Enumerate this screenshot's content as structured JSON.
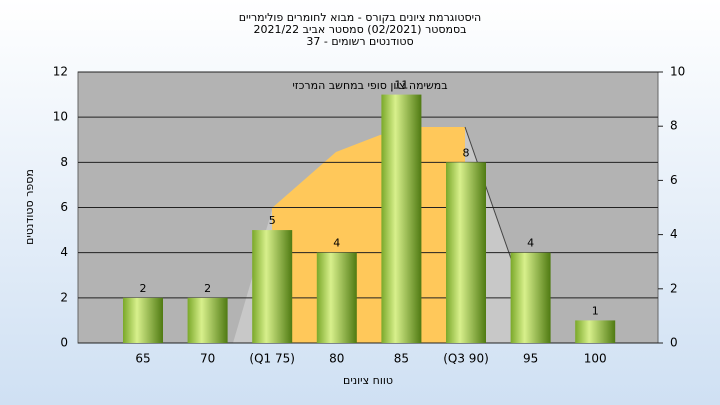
{
  "chart_data": {
    "type": "bar",
    "title": [
      "היסטוגרמת ציונים בקורס - מבוא לחומרים פולימריים",
      "בסמסטר  (02/2021)  סמסטר אביב 2021/22",
      "סטודנטים רשומים - 37"
    ],
    "annotation": "במשימה ציון סופי במחשב המרכזי",
    "x_label": "טווח ציונים",
    "y_label": "מספר סטודנטים",
    "categories": [
      "65",
      "70",
      "(Q1 75)",
      "80",
      "85",
      "(Q3 90)",
      "95",
      "100"
    ],
    "values": [
      2,
      2,
      5,
      4,
      11,
      8,
      4,
      1
    ],
    "color": "#9ccc44",
    "ylim": [
      0,
      12
    ],
    "yticks": [
      0,
      2,
      4,
      6,
      8,
      10,
      12
    ],
    "y2lim": [
      0,
      10
    ],
    "y2ticks": [
      0,
      2,
      4,
      6,
      8,
      10
    ],
    "grid": true
  }
}
